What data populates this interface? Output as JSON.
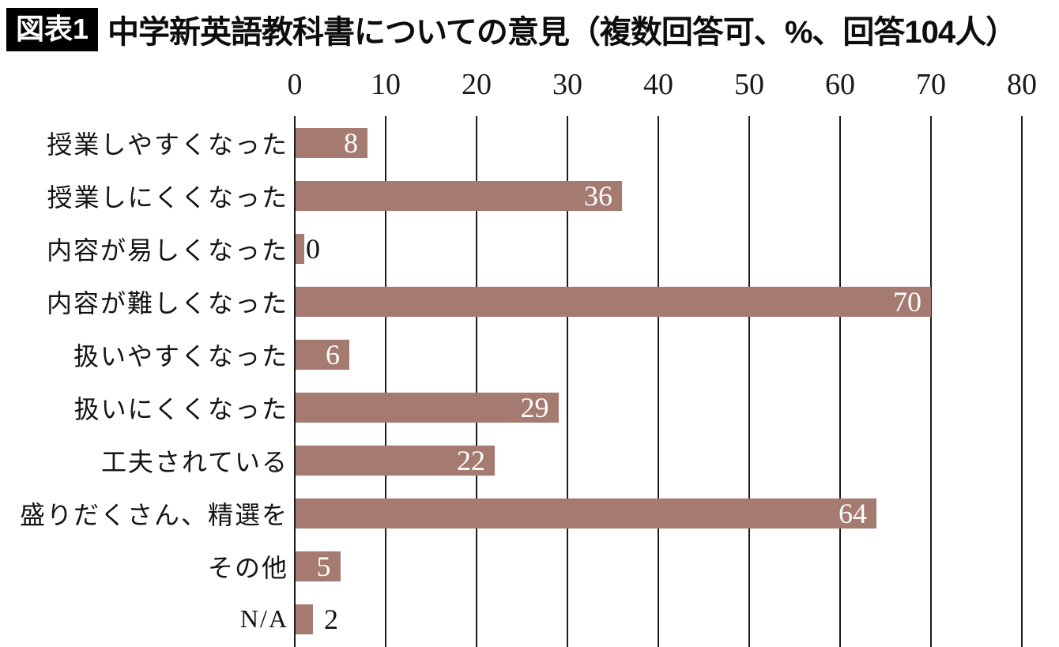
{
  "header": {
    "badge": "図表1",
    "title": "中学新英語教科書についての意見（複数回答可、%、回答104人）"
  },
  "chart_data": {
    "type": "bar",
    "orientation": "horizontal",
    "title": "中学新英語教科書についての意見（複数回答可、%、回答104人）",
    "categories": [
      "授業しやすくなった",
      "授業しにくくなった",
      "内容が易しくなった",
      "内容が難しくなった",
      "扱いやすくなった",
      "扱いにくくなった",
      "工夫されている",
      "盛りだくさん、精選を",
      "その他",
      "N/A"
    ],
    "values": [
      8,
      36,
      0,
      70,
      6,
      29,
      22,
      64,
      5,
      2
    ],
    "xlim": [
      0,
      80
    ],
    "xticks": [
      0,
      10,
      20,
      30,
      40,
      50,
      60,
      70,
      80
    ],
    "xlabel": "",
    "ylabel": "",
    "unit": "%",
    "grid": "vertical",
    "legend": "none",
    "value_labels": "at bar end; white inside bar, black outside for short bars"
  },
  "colors": {
    "bar": "#a57a70",
    "gridline": "#1b1b1b",
    "badge_bg": "#000000",
    "badge_text": "#ffffff",
    "text": "#141414",
    "value_inside": "#ffffff",
    "background": "#ffffff"
  }
}
